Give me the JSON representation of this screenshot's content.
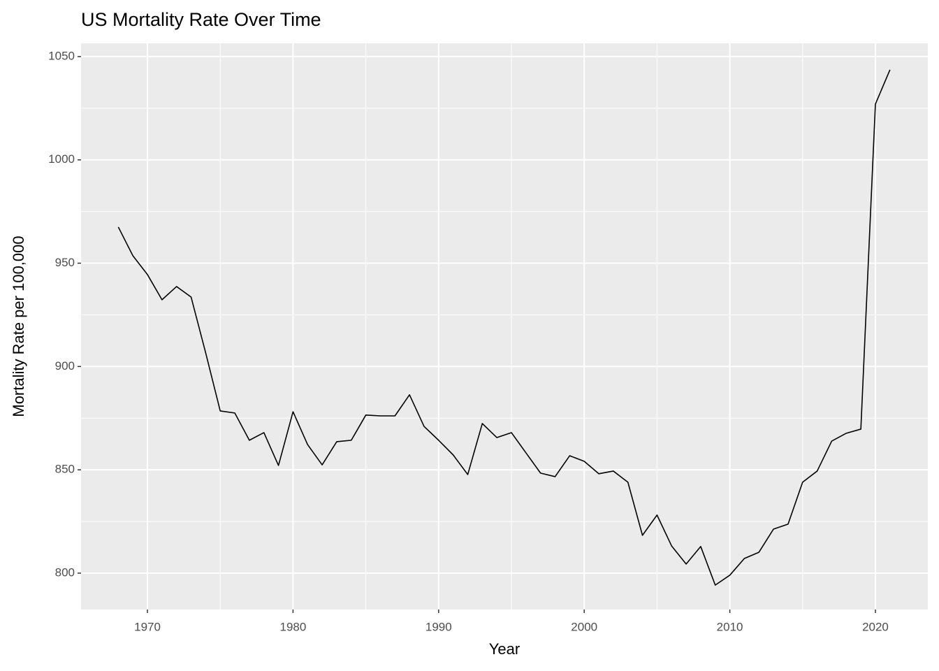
{
  "chart_data": {
    "type": "line",
    "title": "US Mortality Rate Over Time",
    "x_label": "Year",
    "y_label": "Mortality Rate per 100,000",
    "x": [
      1968,
      1969,
      1970,
      1971,
      1972,
      1973,
      1974,
      1975,
      1976,
      1977,
      1978,
      1979,
      1980,
      1981,
      1982,
      1983,
      1984,
      1985,
      1986,
      1987,
      1988,
      1989,
      1990,
      1991,
      1992,
      1993,
      1994,
      1995,
      1996,
      1997,
      1998,
      1999,
      2000,
      2001,
      2002,
      2003,
      2004,
      2005,
      2006,
      2007,
      2008,
      2009,
      2010,
      2011,
      2012,
      2013,
      2014,
      2015,
      2016,
      2017,
      2018,
      2019,
      2020,
      2021
    ],
    "series": [
      {
        "name": "Mortality Rate",
        "color": "#000000",
        "values": [
          967.5,
          953.6,
          944.5,
          932.3,
          938.7,
          933.6,
          906.6,
          878.5,
          877.5,
          864.3,
          868,
          852.1,
          878.1,
          862.2,
          852.4,
          863.6,
          864.3,
          876.5,
          876.1,
          876.1,
          886.3,
          871,
          864.3,
          857.2,
          847.7,
          872.4,
          865.6,
          868,
          858.2,
          848.4,
          846.7,
          856.8,
          854.1,
          848.1,
          849.4,
          844,
          818.3,
          828.1,
          813.2,
          804.4,
          812.9,
          794.2,
          799,
          807.1,
          810.1,
          821.3,
          823.7,
          844,
          849.4,
          863.9,
          867.7,
          869.7,
          1027,
          1043.6
        ]
      }
    ],
    "xlim": [
      1965.44,
      2023.6
    ],
    "ylim": [
      782.4,
      1056.4
    ],
    "xticks": [
      1970,
      1980,
      1990,
      2000,
      2010,
      2020
    ],
    "yticks": [
      800,
      850,
      900,
      950,
      1000,
      1050
    ],
    "grid": true,
    "minor_grid": true
  }
}
